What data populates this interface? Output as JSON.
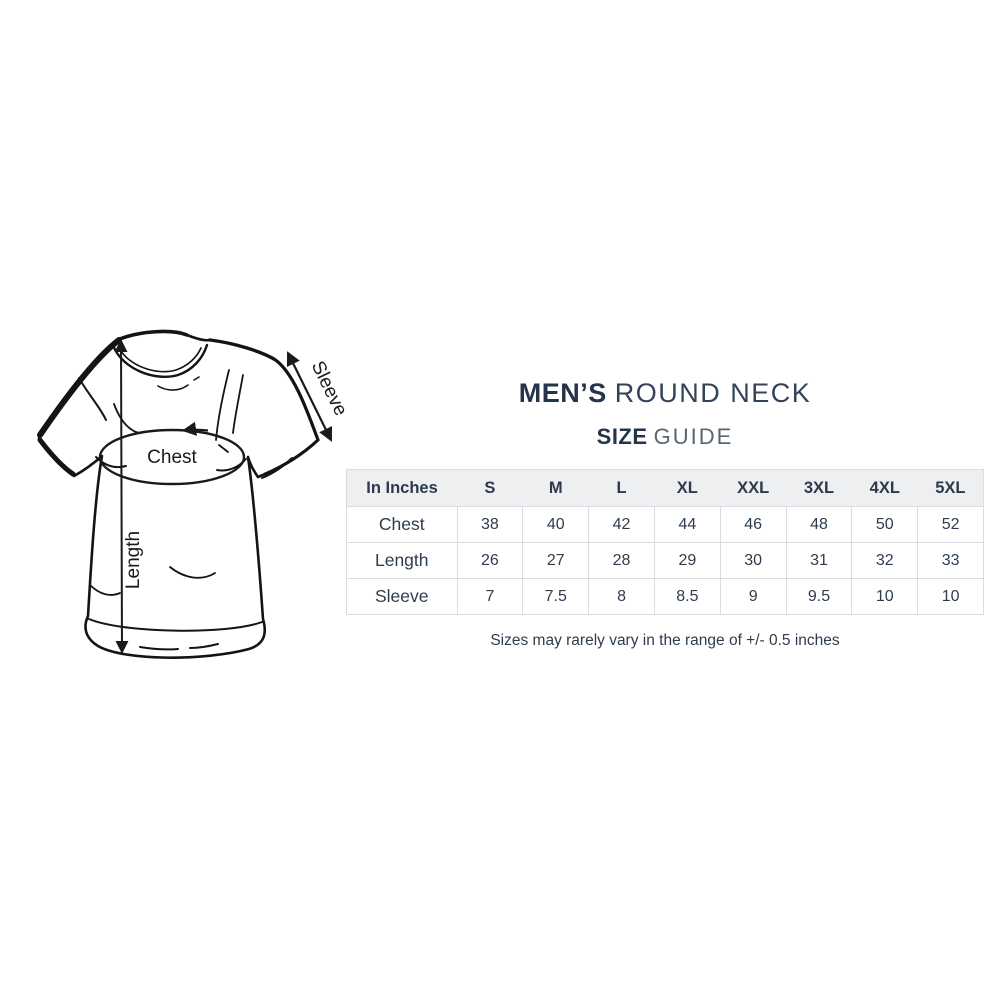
{
  "header": {
    "title_bold": "MEN’S",
    "title_rest": "ROUND NECK",
    "subtitle_bold": "SIZE",
    "subtitle_rest": "GUIDE"
  },
  "diagram": {
    "labels": {
      "chest": "Chest",
      "length": "Length",
      "sleeve": "Sleeve"
    }
  },
  "size_table": {
    "unit_header": "In Inches",
    "sizes": [
      "S",
      "M",
      "L",
      "XL",
      "XXL",
      "3XL",
      "4XL",
      "5XL"
    ],
    "rows": [
      {
        "label": "Chest",
        "values": [
          "38",
          "40",
          "42",
          "44",
          "46",
          "48",
          "50",
          "52"
        ]
      },
      {
        "label": "Length",
        "values": [
          "26",
          "27",
          "28",
          "29",
          "30",
          "31",
          "32",
          "33"
        ]
      },
      {
        "label": "Sleeve",
        "values": [
          "7",
          "7.5",
          "8",
          "8.5",
          "9",
          "9.5",
          "10",
          "10"
        ]
      }
    ]
  },
  "footnote": "Sizes may rarely vary in the range of +/- 0.5 inches",
  "colors": {
    "text_navy": "#2e3c4e",
    "title_navy": "#24344b",
    "subtitle_light": "#5a6571",
    "table_border": "#d9dce0",
    "table_header_bg": "#edeff1",
    "drawing_ink": "#1a1a1a",
    "background": "#ffffff"
  }
}
